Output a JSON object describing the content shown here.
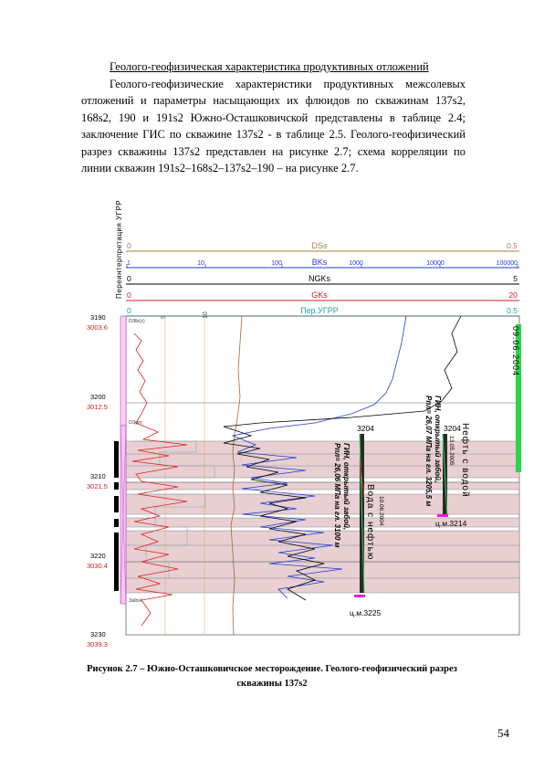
{
  "heading": "Геолого-геофизическая характеристика продуктивных отложений",
  "paragraph": "Геолого-геофизические характеристики продуктивных межсолевых отложений и параметры насыщающих их флюидов по скважинам 137s2, 168s2, 190 и 191s2 Южно-Осташковичской представлены в таблице 2.4; заключение ГИС по скважине 137s2 - в таблице 2.5. Геолого-геофизический разрез скважины 137s2 представлен на рисунке 2.7; схема корреляции по линии скважин 191s2–168s2–137s2–190 – на рисунке 2.7.",
  "figure": {
    "vertical_title": "Переинтерпретация УГРР",
    "scales": [
      {
        "name": "DSs",
        "min": "0",
        "max": "0.5",
        "color": "#b07a3a"
      },
      {
        "name": "BKs",
        "min": "1",
        "ticks": [
          "10",
          "100",
          "1000",
          "10000"
        ],
        "max": "100000",
        "color": "#1f3fd0"
      },
      {
        "name": "NGKs",
        "min": "0",
        "max": "5",
        "color": "#000000"
      },
      {
        "name": "GKs",
        "min": "0",
        "max": "20",
        "color": "#d02020"
      },
      {
        "name": "Пер.УГРР",
        "min": "0",
        "max": "0.5",
        "color": "#20a0a0"
      }
    ],
    "depths": [
      {
        "md": "3190",
        "tvd": "3003.6"
      },
      {
        "md": "3200",
        "tvd": "3012.5"
      },
      {
        "md": "3210",
        "tvd": "3021.5"
      },
      {
        "md": "3220",
        "tvd": "3030.4"
      },
      {
        "md": "3230",
        "tvd": "3039.3"
      }
    ],
    "track_labels": {
      "top": "D3lb(z)",
      "mid": "D3gm",
      "bottom": "3albvl",
      "small1": "5",
      "small2": "10"
    },
    "date_bar": "09.06.2004",
    "test1": {
      "top": "3204",
      "bottom": "ц.м.3225",
      "result": "Вода с нефтью",
      "date": "10.06.2004",
      "note1": "ГИН, открытый забой,",
      "note2": "Рпл= 26,06 МПа на гл. 3100 м"
    },
    "test2": {
      "top": "3204",
      "bottom": "ц.м.3214",
      "result": "Нефть с водой",
      "date": "13.05.2005",
      "note1": "ГИН, открытый забой,",
      "note2": "Рпл= 26,07 МПа на гл. 3205,5 м"
    }
  },
  "caption_line1": "Рисунок 2.7 – Южно-Осташковичское месторождение. Геолого-геофизический разрез",
  "caption_line2": "скважины 137s2",
  "page_number": "54"
}
